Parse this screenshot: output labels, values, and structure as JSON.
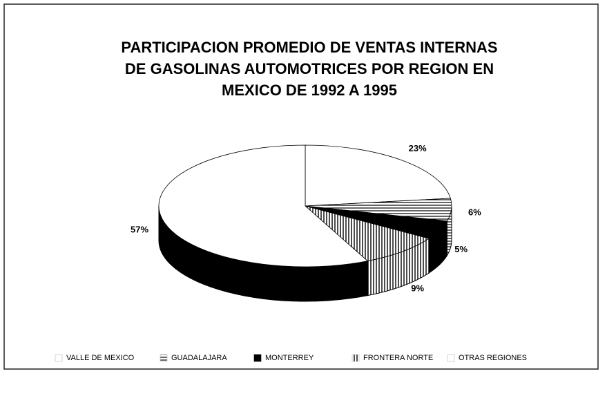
{
  "chart_data": {
    "type": "pie",
    "title": [
      "PARTICIPACION PROMEDIO DE VENTAS INTERNAS",
      "DE GASOLINAS AUTOMOTRICES POR REGION EN",
      "MEXICO DE 1992 A 1995"
    ],
    "categories": [
      "VALLE DE MEXICO",
      "GUADALAJARA",
      "MONTERREY",
      "FRONTERA NORTE",
      "OTRAS REGIONES"
    ],
    "values": [
      23,
      6,
      5,
      9,
      57
    ],
    "value_labels": [
      "23%",
      "6%",
      "5%",
      "9%",
      "57%"
    ],
    "colors": [
      "#ffffff",
      "#ffffff",
      "#000000",
      "#ffffff",
      "#ffffff"
    ],
    "hatch": [
      null,
      "horizontal",
      null,
      "vertical",
      null
    ]
  }
}
